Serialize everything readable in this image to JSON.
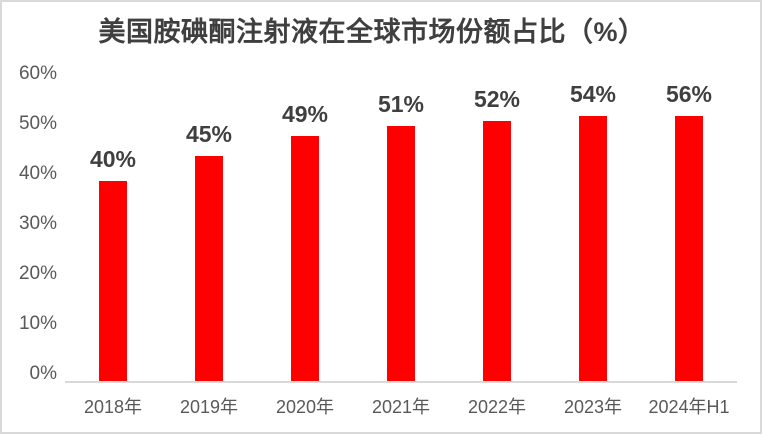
{
  "title": "美国胺碘酮注射液在全球市场份额占比（%）",
  "colors": {
    "bar": "#ff0000",
    "title_text": "#3f3f3f",
    "axis_text": "#595959",
    "baseline": "#d9d9d9",
    "background": "#ffffff",
    "frame_border": "#d9d9d9"
  },
  "chart_data": {
    "type": "bar",
    "title": "美国胺碘酮注射液在全球市场份额占比（%）",
    "categories": [
      "2018年",
      "2019年",
      "2020年",
      "2021年",
      "2022年",
      "2023年",
      "2024年H1"
    ],
    "values": [
      40,
      45,
      49,
      51,
      52,
      54,
      56
    ],
    "data_labels": [
      "40%",
      "45%",
      "49%",
      "51%",
      "52%",
      "54%",
      "56%"
    ],
    "xlabel": "",
    "ylabel": "",
    "ylim": [
      0,
      60
    ],
    "ytick_interval": 10,
    "ytick_labels": [
      "0%",
      "10%",
      "20%",
      "30%",
      "40%",
      "50%",
      "60%"
    ],
    "grid": false,
    "legend": null,
    "bar_color": "#ff0000"
  }
}
